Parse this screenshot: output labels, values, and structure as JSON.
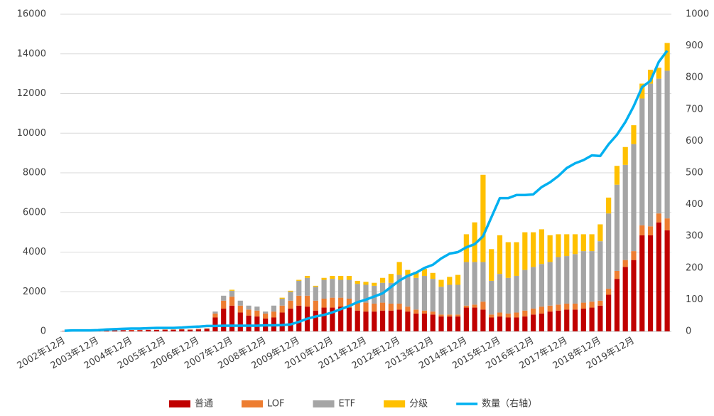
{
  "chart_data": {
    "type": "bar",
    "stacked": true,
    "categories": [
      "2002年12月",
      null,
      null,
      null,
      "2003年12月",
      null,
      null,
      null,
      "2004年12月",
      null,
      null,
      null,
      "2005年12月",
      null,
      null,
      null,
      "2006年12月",
      null,
      null,
      null,
      "2007年12月",
      null,
      null,
      null,
      "2008年12月",
      null,
      null,
      null,
      "2009年12月",
      null,
      null,
      null,
      "2010年12月",
      null,
      null,
      null,
      "2011年12月",
      null,
      null,
      null,
      "2012年12月",
      null,
      null,
      null,
      "2013年12月",
      null,
      null,
      null,
      "2014年12月",
      null,
      null,
      null,
      "2015年12月",
      null,
      null,
      null,
      "2016年12月",
      null,
      null,
      null,
      "2017年12月",
      null,
      null,
      null,
      "2018年12月",
      null,
      null,
      null,
      "2019年12月",
      null,
      null,
      null,
      null
    ],
    "series": [
      {
        "name": "普通",
        "color": "#c00000",
        "values": [
          20,
          20,
          30,
          30,
          40,
          40,
          50,
          60,
          60,
          60,
          70,
          70,
          80,
          80,
          90,
          80,
          100,
          120,
          700,
          1150,
          1300,
          950,
          800,
          750,
          650,
          700,
          950,
          1150,
          1300,
          1250,
          1050,
          1200,
          1200,
          1250,
          1200,
          1050,
          1000,
          1000,
          1050,
          1050,
          1100,
          1000,
          900,
          900,
          850,
          750,
          750,
          750,
          1200,
          1200,
          1100,
          700,
          750,
          700,
          700,
          750,
          850,
          900,
          1000,
          1050,
          1100,
          1100,
          1150,
          1200,
          1300,
          1850,
          2650,
          3250,
          3600,
          4850,
          4850,
          5500,
          5100
        ]
      },
      {
        "name": "LOF",
        "color": "#ed7d31",
        "values": [
          0,
          0,
          0,
          0,
          0,
          0,
          0,
          0,
          10,
          10,
          10,
          10,
          20,
          20,
          20,
          20,
          20,
          30,
          200,
          400,
          450,
          350,
          300,
          300,
          250,
          300,
          350,
          400,
          500,
          550,
          500,
          450,
          500,
          450,
          450,
          400,
          450,
          400,
          400,
          350,
          300,
          250,
          200,
          150,
          150,
          100,
          100,
          100,
          100,
          150,
          400,
          150,
          200,
          200,
          250,
          300,
          300,
          350,
          300,
          300,
          300,
          300,
          300,
          300,
          250,
          300,
          400,
          350,
          450,
          500,
          450,
          450,
          600
        ]
      },
      {
        "name": "ETF",
        "color": "#a5a5a5",
        "values": [
          0,
          0,
          0,
          0,
          0,
          0,
          0,
          0,
          0,
          10,
          10,
          10,
          10,
          10,
          10,
          10,
          20,
          20,
          100,
          250,
          300,
          250,
          200,
          200,
          100,
          300,
          350,
          450,
          750,
          900,
          700,
          950,
          950,
          900,
          950,
          950,
          900,
          900,
          1000,
          1050,
          1450,
          1600,
          1600,
          1750,
          1650,
          1400,
          1500,
          1500,
          2200,
          2150,
          2000,
          1700,
          1950,
          1800,
          1850,
          2050,
          2100,
          2150,
          2200,
          2400,
          2400,
          2500,
          2600,
          2550,
          3000,
          3800,
          4350,
          4800,
          5400,
          6400,
          7200,
          6800,
          7450
        ]
      },
      {
        "name": "分级",
        "color": "#ffc000",
        "values": [
          0,
          0,
          0,
          0,
          0,
          0,
          0,
          0,
          0,
          0,
          0,
          0,
          0,
          0,
          0,
          0,
          0,
          0,
          0,
          0,
          50,
          0,
          0,
          0,
          0,
          0,
          50,
          50,
          50,
          100,
          50,
          100,
          150,
          200,
          200,
          150,
          150,
          150,
          250,
          450,
          650,
          250,
          300,
          350,
          300,
          350,
          400,
          500,
          1400,
          2000,
          4400,
          1600,
          1950,
          1800,
          1700,
          1900,
          1750,
          1750,
          1350,
          1150,
          1100,
          1000,
          850,
          850,
          850,
          800,
          950,
          900,
          950,
          750,
          700,
          550,
          1400
        ]
      },
      {
        "name": "数量（右轴）",
        "color": "#00b0f0",
        "type": "line",
        "axis": "y2",
        "values": [
          2,
          3,
          3,
          3,
          4,
          6,
          7,
          8,
          9,
          9,
          10,
          11,
          11,
          11,
          12,
          14,
          15,
          17,
          17,
          18,
          18,
          18,
          18,
          18,
          19,
          19,
          20,
          22,
          30,
          40,
          47,
          52,
          60,
          70,
          80,
          92,
          100,
          110,
          120,
          140,
          160,
          175,
          185,
          200,
          210,
          230,
          245,
          250,
          265,
          275,
          300,
          360,
          420,
          420,
          430,
          430,
          432,
          455,
          470,
          490,
          515,
          530,
          540,
          555,
          553,
          590,
          620,
          660,
          710,
          770,
          790,
          850,
          885
        ]
      }
    ],
    "ylim": [
      0,
      16000
    ],
    "yticks": [
      0,
      2000,
      4000,
      6000,
      8000,
      10000,
      12000,
      14000,
      16000
    ],
    "y2lim": [
      0,
      1000
    ],
    "y2ticks": [
      0,
      100,
      200,
      300,
      400,
      500,
      600,
      700,
      800,
      900,
      1000
    ],
    "grid": true,
    "legend": "bottom"
  }
}
